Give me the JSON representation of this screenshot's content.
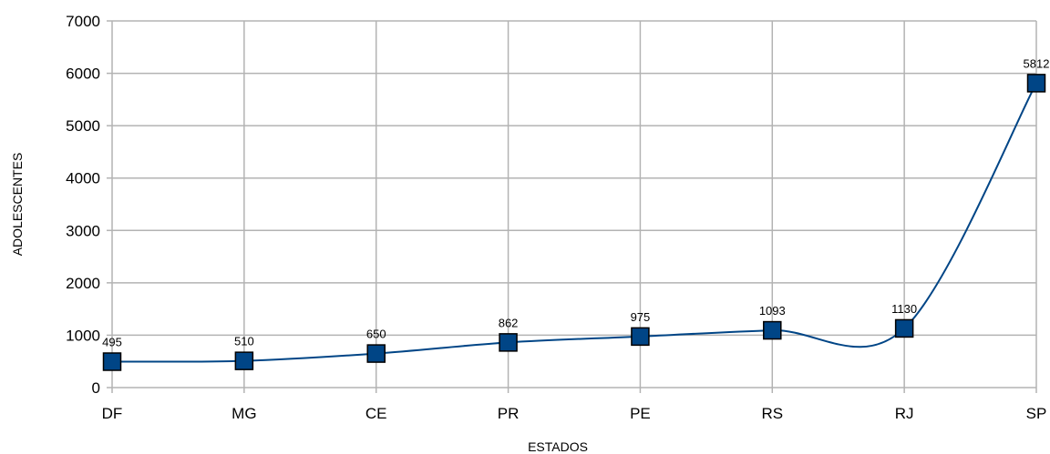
{
  "chart_data": {
    "type": "line",
    "title": "",
    "xlabel": "ESTADOS",
    "ylabel": "ADOLESCENTES",
    "categories": [
      "DF",
      "MG",
      "CE",
      "PR",
      "PE",
      "RS",
      "RJ",
      "SP"
    ],
    "series": [
      {
        "values": [
          495,
          510,
          650,
          862,
          975,
          1093,
          1130,
          5812
        ],
        "data_labels": [
          "495",
          "510",
          "650",
          "862",
          "975",
          "1093",
          "1130",
          "5812"
        ]
      }
    ],
    "ylim": [
      0,
      7000
    ],
    "yticks": [
      "0",
      "1000",
      "2000",
      "3000",
      "4000",
      "5000",
      "6000",
      "7000"
    ],
    "grid": true,
    "legend": "none",
    "colors": {
      "line": "#004586",
      "marker": "#004586",
      "marker_edge": "#000000",
      "grid": "#b3b3b3"
    }
  }
}
